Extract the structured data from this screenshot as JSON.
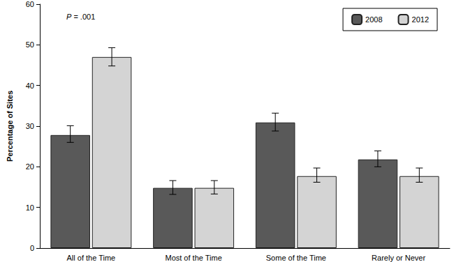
{
  "chart_data": {
    "type": "bar",
    "y_label": "Percentage of Sites",
    "annotation": "P = .001",
    "categories": [
      "All of the Time",
      "Most of the Time",
      "Some of the Time",
      "Rarely or Never"
    ],
    "series": [
      {
        "name": "2008",
        "color": "#595959",
        "values": [
          27.8,
          14.8,
          30.9,
          21.8
        ],
        "error_low": [
          26.0,
          13.2,
          28.8,
          20.0
        ],
        "error_high": [
          30.1,
          16.6,
          33.2,
          23.9
        ]
      },
      {
        "name": "2012",
        "color": "#d4d4d4",
        "values": [
          47.0,
          14.8,
          17.7,
          17.7
        ],
        "error_low": [
          44.8,
          13.3,
          16.2,
          16.2
        ],
        "error_high": [
          49.3,
          16.6,
          19.7,
          19.7
        ]
      }
    ],
    "ylim": [
      0,
      60
    ],
    "yticks": [
      0,
      10,
      20,
      30,
      40,
      50,
      60
    ],
    "grid": false,
    "legend": "top-right"
  }
}
